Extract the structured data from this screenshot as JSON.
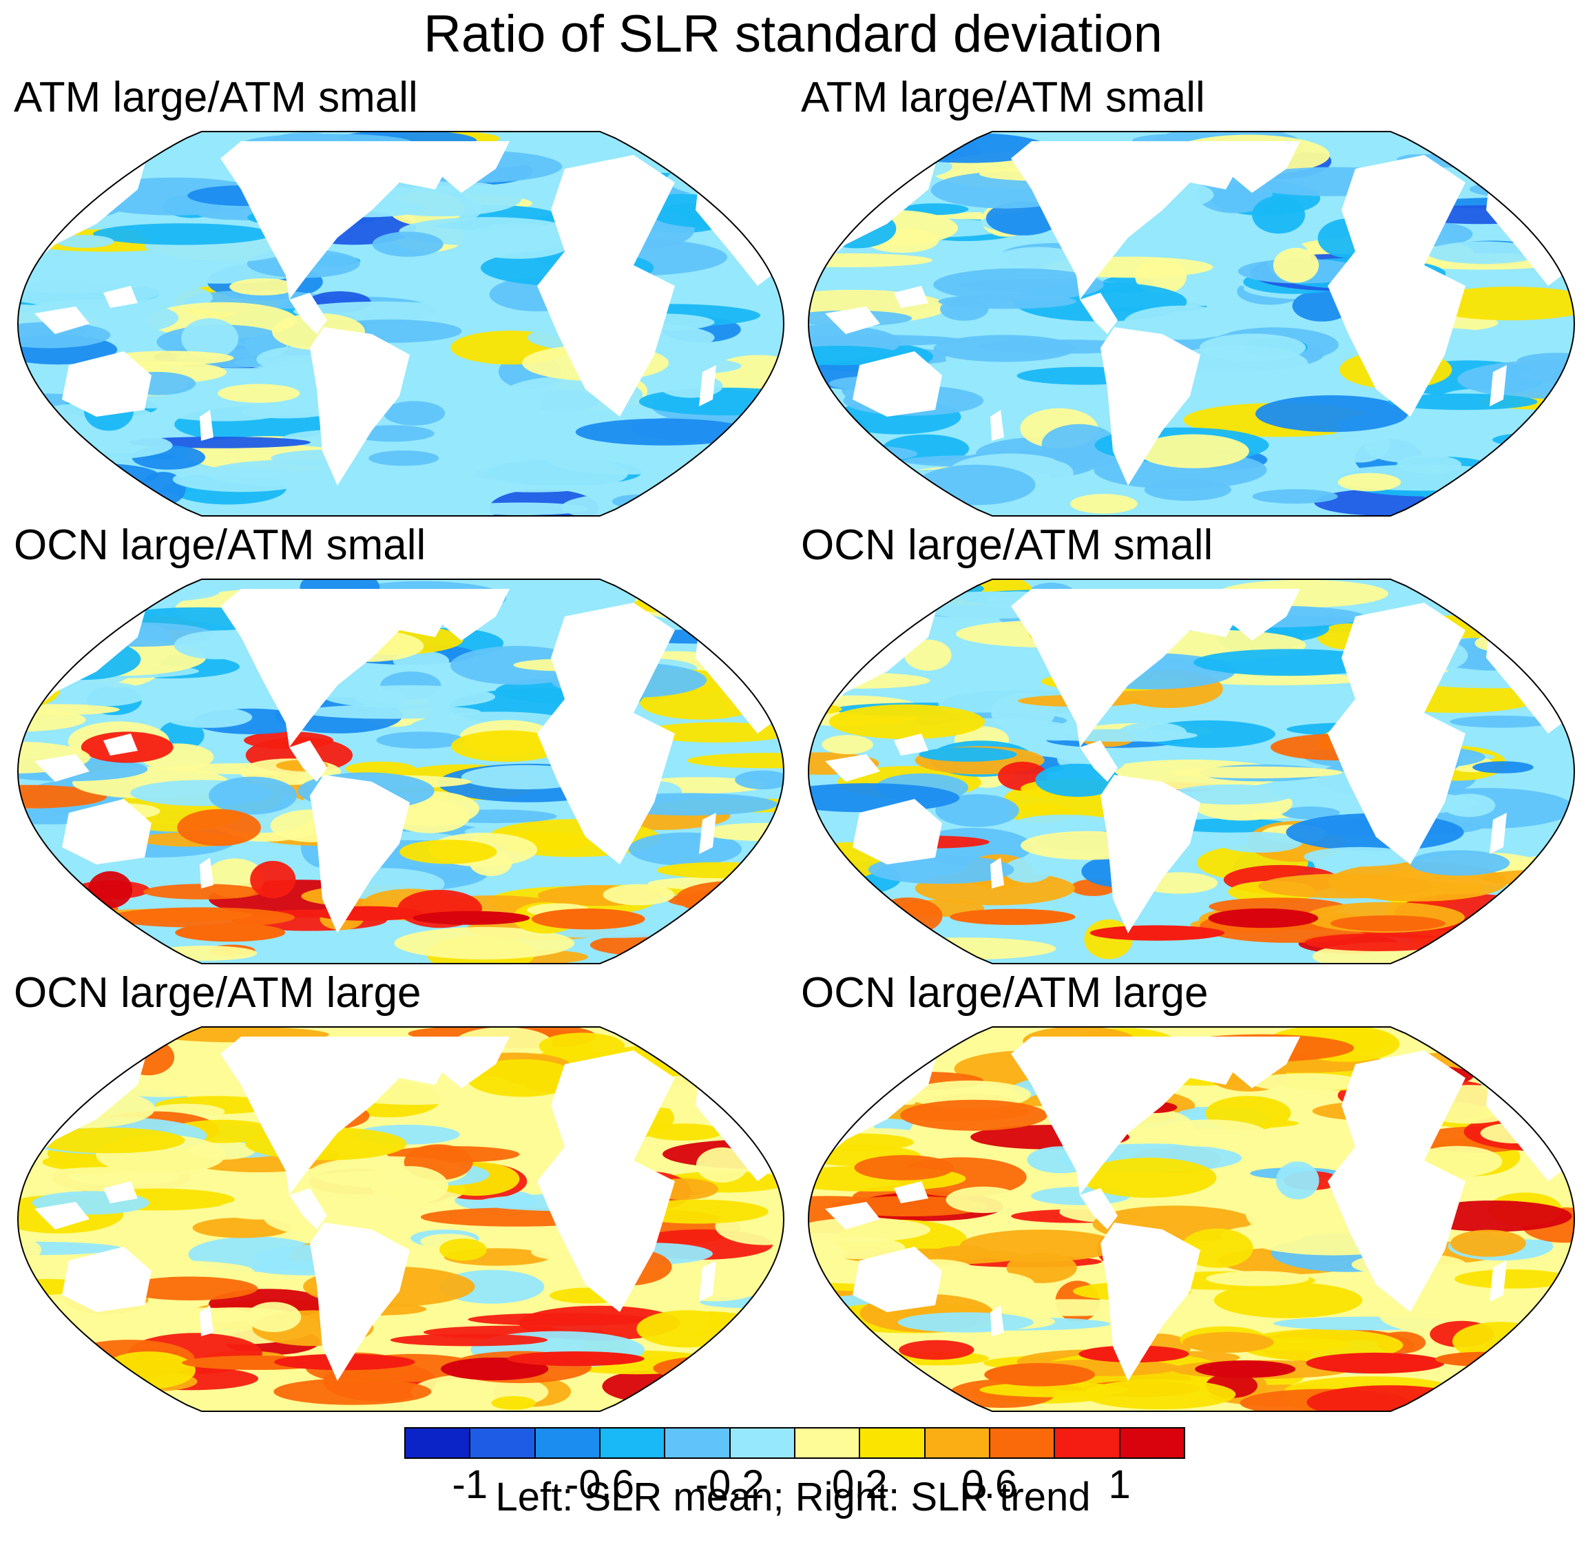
{
  "title": "Ratio of SLR standard deviation",
  "panels": [
    {
      "title": "ATM large/ATM small",
      "column": "left",
      "tone": "cool"
    },
    {
      "title": "ATM large/ATM small",
      "column": "right",
      "tone": "cool"
    },
    {
      "title": "OCN large/ATM small",
      "column": "left",
      "tone": "mixed"
    },
    {
      "title": "OCN large/ATM small",
      "column": "right",
      "tone": "mixed"
    },
    {
      "title": "OCN large/ATM large",
      "column": "left",
      "tone": "warm"
    },
    {
      "title": "OCN large/ATM large",
      "column": "right",
      "tone": "warm"
    }
  ],
  "colorbar": {
    "levels": [
      -1.2,
      -1.0,
      -0.8,
      -0.6,
      -0.4,
      -0.2,
      0,
      0.2,
      0.4,
      0.6,
      0.8,
      1.0,
      1.2
    ],
    "colors": [
      "#0b24c8",
      "#1f5ce6",
      "#1b8df0",
      "#19b8f6",
      "#60c4fa",
      "#96e8fc",
      "#fdfc96",
      "#fbe400",
      "#fbae14",
      "#fb6a0a",
      "#f51d11",
      "#d8030c"
    ],
    "tick_labels": [
      "-1",
      "-0.6",
      "-0.2",
      "0.2",
      "0.6",
      "1"
    ],
    "tick_values": [
      -1.0,
      -0.6,
      -0.2,
      0.2,
      0.6,
      1.0
    ]
  },
  "caption": "Left: SLR mean; Right: SLR trend",
  "chart_data": {
    "type": "heatmap",
    "title": "Ratio of SLR standard deviation",
    "subplots": [
      "ATM large/ATM small (SLR mean)",
      "ATM large/ATM small (SLR trend)",
      "OCN large/ATM small (SLR mean)",
      "OCN large/ATM small (SLR trend)",
      "OCN large/ATM large (SLR mean)",
      "OCN large/ATM large (SLR trend)"
    ],
    "projection": "Robinson (Pacific-centered global ocean map)",
    "colorbar_range": [
      -1.2,
      1.2
    ],
    "colorbar_interval": 0.2,
    "colorbar_label": "Left: SLR mean; Right: SLR trend",
    "summary": {
      "ATM large/ATM small": "mostly negative (-0.6 to 0.2), weak positive bands",
      "OCN large/ATM small": "negative in North Pacific, positive (0.2 to 1.2) in Southern Ocean",
      "OCN large/ATM large": "mostly positive (0 to 1.2), strongest in Southern Ocean and Agulhas region"
    }
  }
}
